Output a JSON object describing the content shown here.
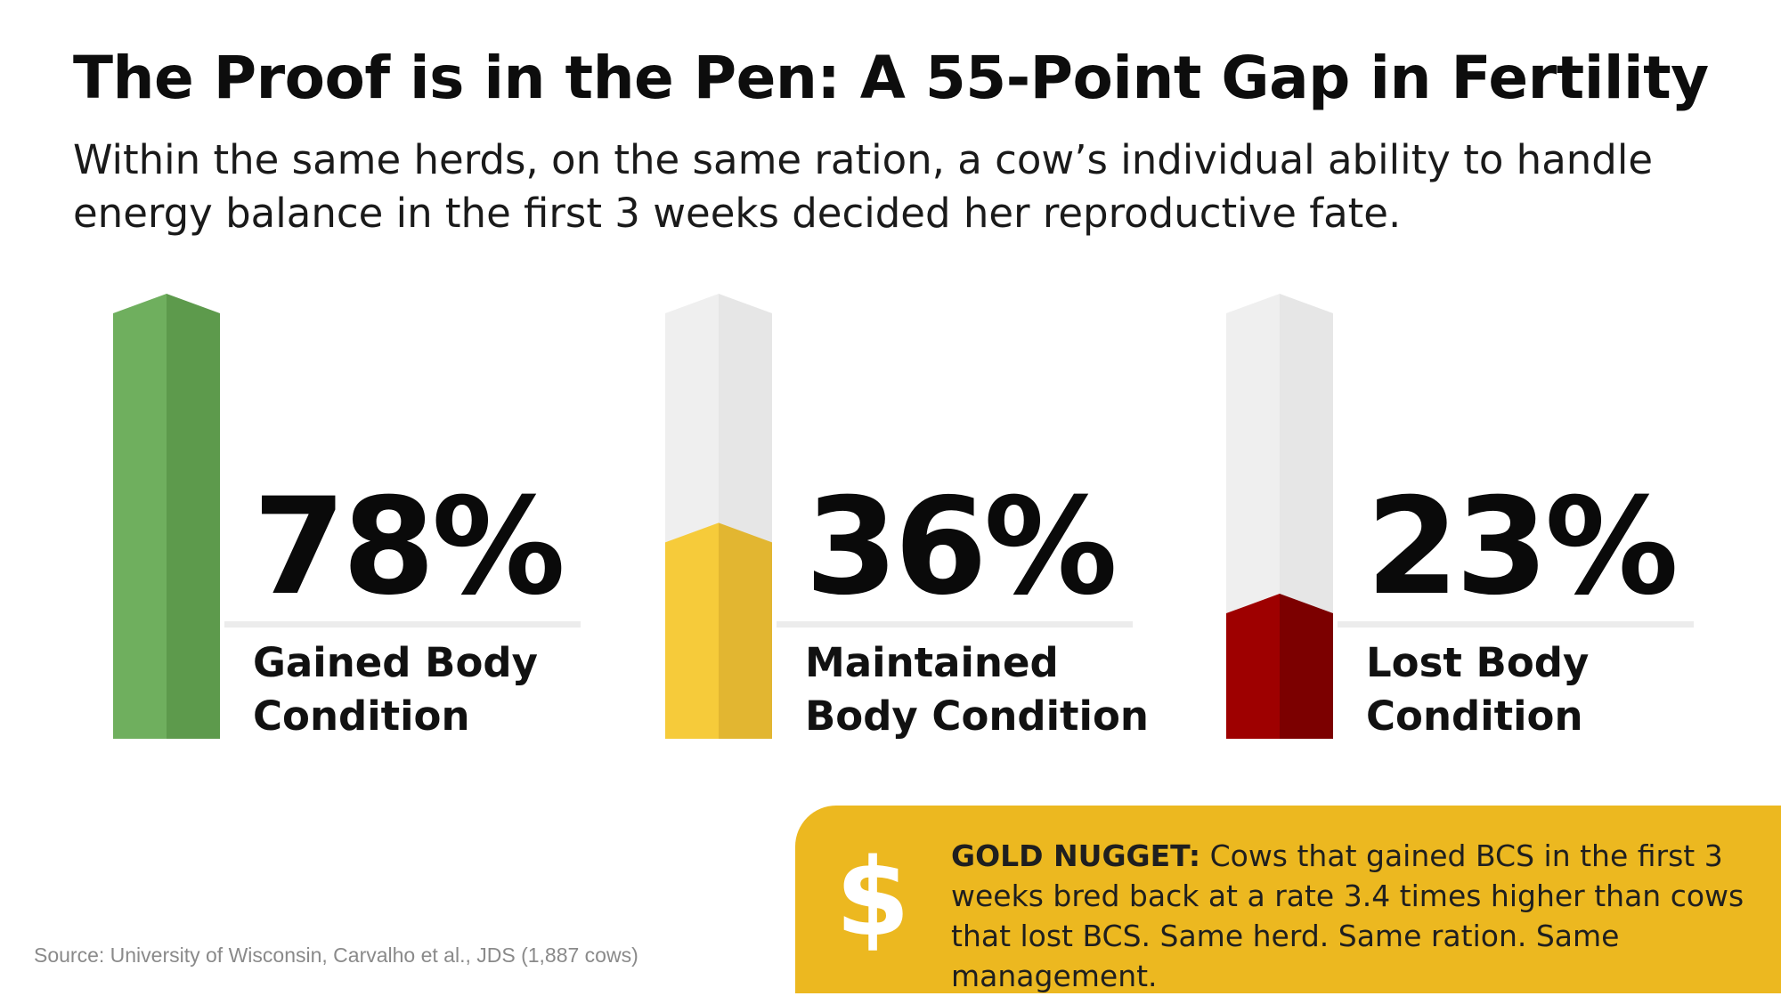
{
  "title": "The Proof is in the Pen: A 55-Point Gap in Fertility",
  "subtitle": "Within the same herds, on the same ration, a cow’s individual ability to handle energy balance in the first 3 weeks decided her reproductive fate.",
  "chart_data": {
    "type": "bar",
    "categories": [
      "Gained Body Condition",
      "Maintained Body Condition",
      "Lost Body Condition"
    ],
    "values": [
      78,
      36,
      23
    ],
    "value_labels": [
      "78%",
      "36%",
      "23%"
    ],
    "ylim": [
      0,
      78
    ],
    "colors": [
      {
        "light": "#6faf5e",
        "dark": "#5d9a4c"
      },
      {
        "light": "#f6cb3a",
        "dark": "#e2b631"
      },
      {
        "light": "#9e0000",
        "dark": "#7c0000"
      }
    ],
    "track_color": {
      "light": "#efefef",
      "dark": "#e6e6e6"
    }
  },
  "nugget": {
    "icon": "dollar-icon",
    "icon_glyph": "$",
    "lead": "GOLD NUGGET:",
    "text": " Cows that gained BCS in the first 3 weeks bred back at a rate 3.4 times higher than cows that lost BCS. Same herd. Same ration. Same management."
  },
  "source": "Source: University of Wisconsin, Carvalho et al., JDS (1,887 cows)"
}
